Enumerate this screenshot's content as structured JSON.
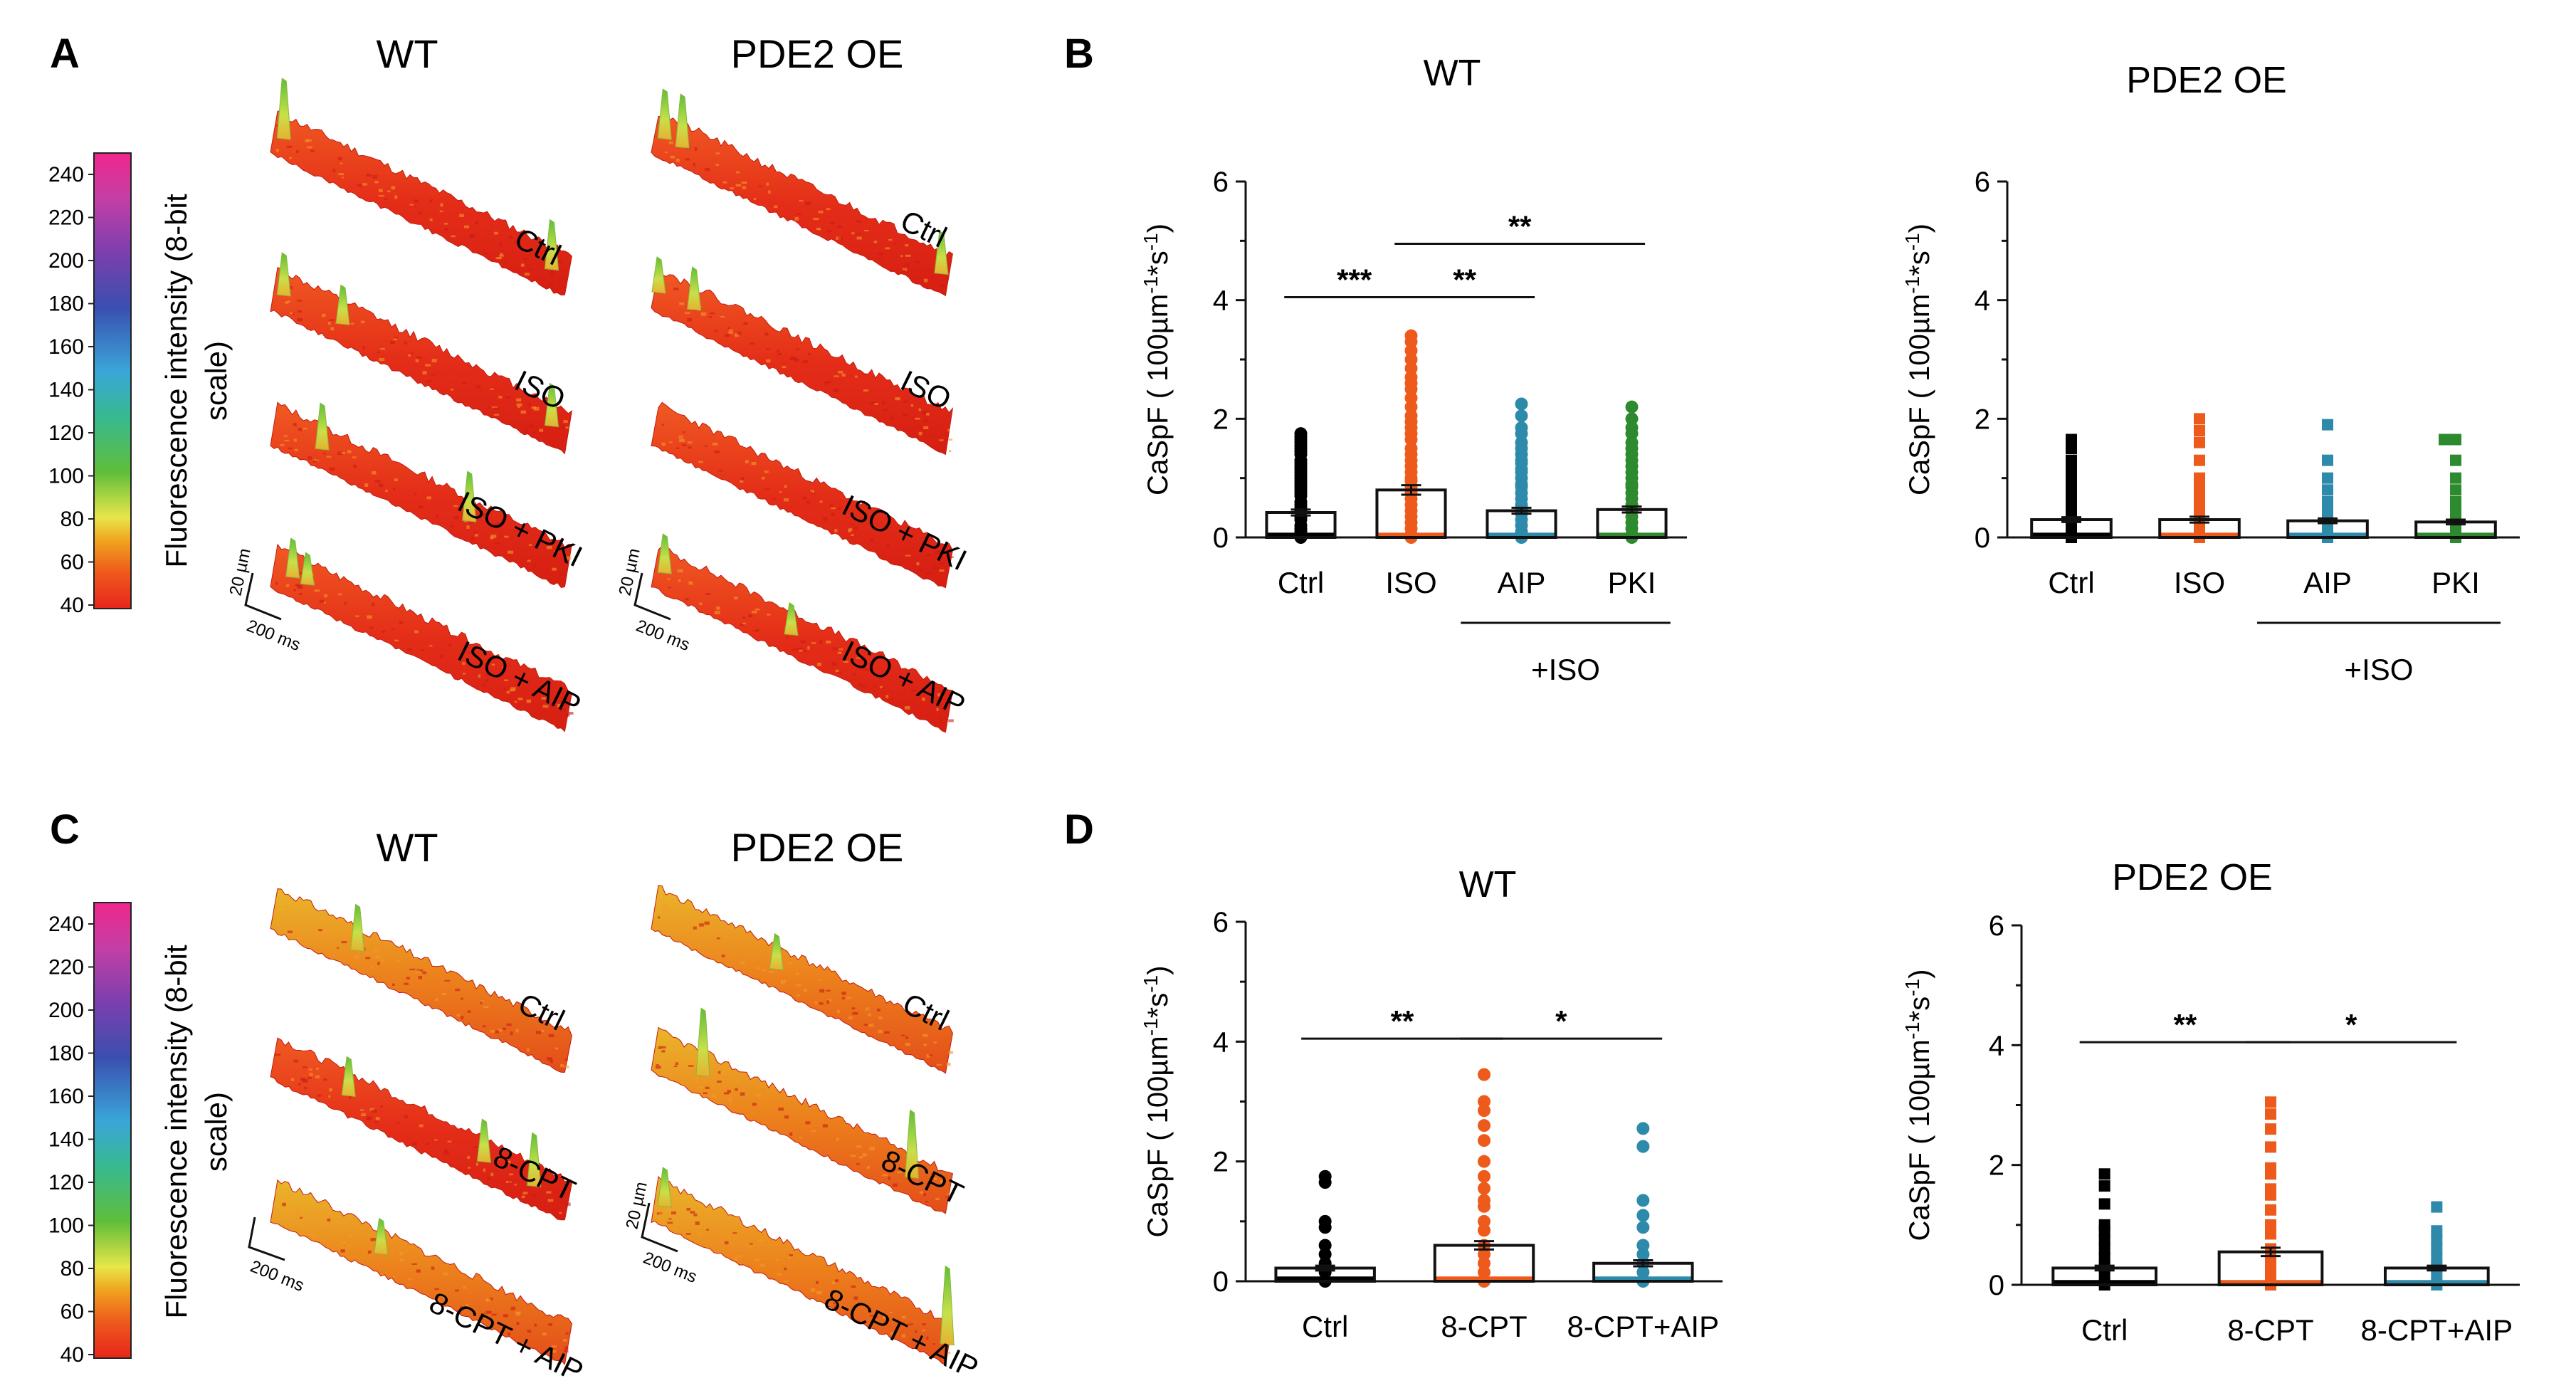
{
  "colors": {
    "black": "#000000",
    "orange": "#ee5a1c",
    "blue": "#2e8aaa",
    "green": "#2e8a2e",
    "trace_red": "#e42d18",
    "trace_orange": "#ec7f1c",
    "trace_yellow": "#e8e64a",
    "trace_green": "#5fbe3a"
  },
  "panel_labels": {
    "A": "A",
    "B": "B",
    "C": "C",
    "D": "D"
  },
  "colorbar": {
    "title": "Fluorescence intensity (8-bit scale)",
    "title_line1": "Fluorescence intensity (8-bit",
    "title_line2": "scale)",
    "ticks": [
      "40",
      "60",
      "80",
      "100",
      "120",
      "140",
      "160",
      "180",
      "200",
      "220",
      "240"
    ]
  },
  "panel_A": {
    "col_titles": [
      "WT",
      "PDE2 OE"
    ],
    "trace_labels": [
      "Ctrl",
      "ISO",
      "ISO + PKI",
      "ISO + AIP"
    ],
    "scalebar_y": "20 µm",
    "scalebar_x": "200 ms"
  },
  "panel_C": {
    "col_titles": [
      "WT",
      "PDE2 OE"
    ],
    "trace_labels": [
      "Ctrl",
      "8-CPT",
      "8-CPT + AIP"
    ],
    "scalebar_y": "20 µm",
    "scalebar_x": "200 ms"
  },
  "chart_data": [
    {
      "id": "B-WT",
      "type": "scatter",
      "title": "WT",
      "ylabel": "CaSpF (100µm⁻¹*s⁻¹)",
      "ylabel_main": "CaSpF ( 100µm",
      "ylabel_sup1": "-1",
      "ylabel_mid": "*s",
      "ylabel_sup2": "-1",
      "ylabel_end": ")",
      "ylim": [
        0,
        6
      ],
      "yticks": [
        "0",
        "2",
        "4",
        "6"
      ],
      "categories": [
        "Ctrl",
        "ISO",
        "AIP",
        "PKI"
      ],
      "group_label": "+ISO",
      "marker": "circle",
      "colors": [
        "#000000",
        "#ee5a1c",
        "#2e8aaa",
        "#2e8a2e"
      ],
      "means": [
        0.42,
        0.8,
        0.45,
        0.47
      ],
      "sem": [
        0.05,
        0.08,
        0.05,
        0.05
      ],
      "points": [
        [
          1.75,
          1.7,
          1.65,
          1.6,
          1.55,
          1.5,
          1.45,
          1.4,
          1.3,
          1.25,
          1.2,
          1.15,
          1.1,
          1.05,
          1.0,
          0.95,
          0.9,
          0.85,
          0.8,
          0.75,
          0.7,
          0.6,
          0.55,
          0.5,
          0.45,
          0.35,
          0.3,
          0.2,
          0.15,
          0.1,
          0.05,
          0.0
        ],
        [
          3.4,
          3.3,
          3.15,
          3.0,
          2.85,
          2.7,
          2.6,
          2.5,
          2.35,
          2.2,
          2.05,
          1.95,
          1.85,
          1.75,
          1.65,
          1.5,
          1.4,
          1.3,
          1.2,
          1.1,
          1.0,
          0.95,
          0.85,
          0.75,
          0.65,
          0.55,
          0.45,
          0.35,
          0.25,
          0.15,
          0.05,
          0.0
        ],
        [
          2.25,
          2.05,
          1.85,
          1.75,
          1.6,
          1.5,
          1.4,
          1.3,
          1.25,
          1.15,
          1.1,
          1.0,
          0.9,
          0.85,
          0.75,
          0.65,
          0.55,
          0.5,
          0.4,
          0.3,
          0.2,
          0.1,
          0.05,
          0.0
        ],
        [
          2.2,
          2.0,
          1.85,
          1.75,
          1.6,
          1.5,
          1.4,
          1.3,
          1.2,
          1.1,
          1.0,
          0.9,
          0.85,
          0.75,
          0.65,
          0.55,
          0.45,
          0.35,
          0.25,
          0.15,
          0.05,
          0.0
        ]
      ],
      "significance": [
        {
          "from": 0,
          "to": 1,
          "label": "***"
        },
        {
          "from": 1,
          "to": 2,
          "label": "**"
        },
        {
          "from": 1,
          "to": 3,
          "label": "**"
        }
      ]
    },
    {
      "id": "B-PDE2",
      "type": "scatter",
      "title": "PDE2 OE",
      "ylabel": "CaSpF (100µm⁻¹*s⁻¹)",
      "ylabel_main": "CaSpF ( 100µm",
      "ylabel_sup1": "-1",
      "ylabel_mid": "*s",
      "ylabel_sup2": "-1",
      "ylabel_end": ")",
      "ylim": [
        0,
        6
      ],
      "yticks": [
        "0",
        "2",
        "4",
        "6"
      ],
      "categories": [
        "Ctrl",
        "ISO",
        "AIP",
        "PKI"
      ],
      "group_label": "+ISO",
      "marker": "square",
      "colors": [
        "#000000",
        "#ee5a1c",
        "#2e8aaa",
        "#2e8a2e"
      ],
      "means": [
        0.3,
        0.3,
        0.28,
        0.26
      ],
      "sem": [
        0.04,
        0.05,
        0.04,
        0.04
      ],
      "points": [
        [
          1.65,
          1.5,
          1.3,
          1.15,
          1.0,
          0.9,
          0.8,
          0.7,
          0.6,
          0.5,
          0.4,
          0.3,
          0.2,
          0.1,
          0.0
        ],
        [
          2.0,
          1.8,
          1.6,
          1.3,
          1.0,
          0.9,
          0.75,
          0.6,
          0.45,
          0.3,
          0.15,
          0.0
        ],
        [
          1.9,
          1.3,
          1.0,
          0.8,
          0.6,
          0.45,
          0.3,
          0.15,
          0.0
        ],
        [
          1.65,
          1.65,
          1.3,
          1.0,
          0.8,
          0.6,
          0.45,
          0.3,
          0.15,
          0.0
        ]
      ],
      "significance": []
    },
    {
      "id": "D-WT",
      "type": "scatter",
      "title": "WT",
      "ylabel": "CaSpF (100µm⁻¹*s⁻¹)",
      "ylabel_main": "CaSpF ( 100µm",
      "ylabel_sup1": "-1",
      "ylabel_mid": "*s",
      "ylabel_sup2": "-1",
      "ylabel_end": ")",
      "ylim": [
        0,
        6
      ],
      "yticks": [
        "0",
        "2",
        "4",
        "6"
      ],
      "categories": [
        "Ctrl",
        "8-CPT",
        "8-CPT+AIP"
      ],
      "marker": "circle",
      "colors": [
        "#000000",
        "#ee5a1c",
        "#2e8aaa"
      ],
      "means": [
        0.22,
        0.6,
        0.3
      ],
      "sem": [
        0.04,
        0.07,
        0.05
      ],
      "points": [
        [
          1.75,
          1.65,
          1.0,
          0.9,
          0.6,
          0.45,
          0.3,
          0.15,
          0.0
        ],
        [
          3.45,
          3.0,
          2.85,
          2.6,
          2.35,
          2.0,
          1.75,
          1.55,
          1.35,
          1.25,
          1.0,
          0.85,
          0.6,
          0.45,
          0.3,
          0.15,
          0.0
        ],
        [
          2.55,
          2.25,
          1.35,
          1.1,
          0.9,
          0.6,
          0.45,
          0.3,
          0.15,
          0.0
        ]
      ],
      "significance": [
        {
          "from": 0,
          "to": 1,
          "label": "**"
        },
        {
          "from": 1,
          "to": 2,
          "label": "*"
        }
      ]
    },
    {
      "id": "D-PDE2",
      "type": "scatter",
      "title": "PDE2 OE",
      "ylabel": "CaSpF (100µm⁻¹*s⁻¹)",
      "ylabel_main": "CaSpF ( 100µm",
      "ylabel_sup1": "-1",
      "ylabel_mid": "*s",
      "ylabel_sup2": "-1",
      "ylabel_end": ")",
      "ylim": [
        0,
        6
      ],
      "yticks": [
        "0",
        "2",
        "4",
        "6"
      ],
      "categories": [
        "Ctrl",
        "8-CPT",
        "8-CPT+AIP"
      ],
      "marker": "square",
      "colors": [
        "#000000",
        "#ee5a1c",
        "#2e8aaa"
      ],
      "means": [
        0.28,
        0.55,
        0.28
      ],
      "sem": [
        0.04,
        0.07,
        0.04
      ],
      "points": [
        [
          1.85,
          1.65,
          1.35,
          1.0,
          0.9,
          0.75,
          0.6,
          0.45,
          0.3,
          0.15,
          0.0
        ],
        [
          3.05,
          2.85,
          2.6,
          2.3,
          1.95,
          1.85,
          1.6,
          1.5,
          1.25,
          1.0,
          0.85,
          0.6,
          0.45,
          0.3,
          0.15,
          0.0
        ],
        [
          1.3,
          0.9,
          0.75,
          0.6,
          0.45,
          0.3,
          0.15,
          0.0
        ]
      ],
      "significance": [
        {
          "from": 0,
          "to": 1,
          "label": "**"
        },
        {
          "from": 1,
          "to": 2,
          "label": "*"
        }
      ]
    }
  ]
}
